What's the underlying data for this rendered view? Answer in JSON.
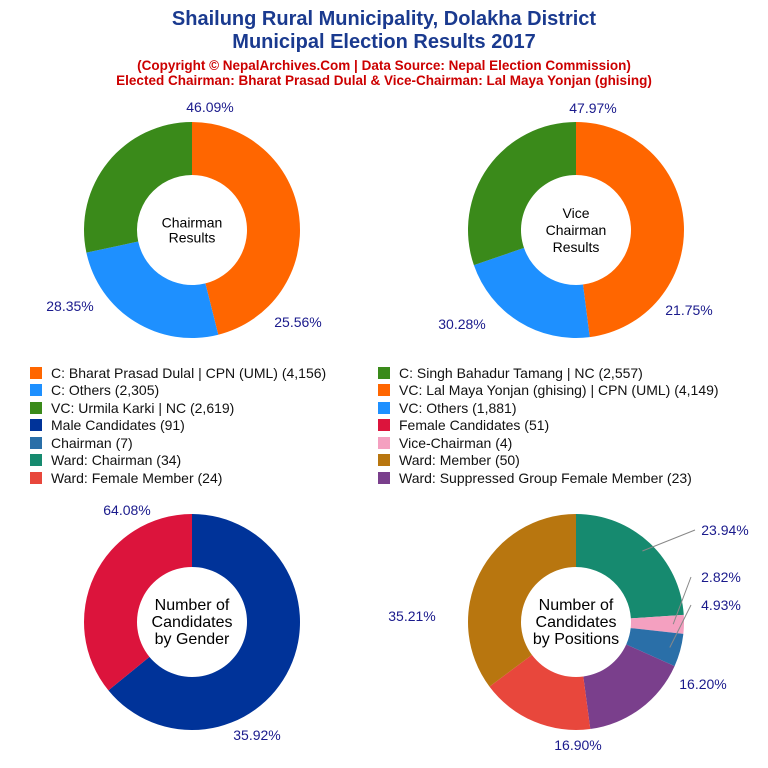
{
  "header": {
    "title_line1": "Shailung Rural Municipality, Dolakha District",
    "title_line2": "Municipal Election Results 2017",
    "subtitle_line1": "(Copyright © NepalArchives.Com | Data Source: Nepal Election Commission)",
    "subtitle_line2": "Elected Chairman: Bharat Prasad Dulal & Vice-Chairman: Lal Maya Yonjan (ghising)"
  },
  "colors": {
    "title": "#1a3a8f",
    "subtitle": "#cc0000",
    "percent_label": "#1a1a8c"
  },
  "chart_data": [
    {
      "type": "pie",
      "center_label": [
        "Chairman",
        "Results"
      ],
      "slices": [
        {
          "label": "C: Bharat Prasad Dulal | CPN (UML) (4,156)",
          "value": 4156,
          "percent": "46.09%",
          "color": "#ff6600"
        },
        {
          "label": "C: Others (2,305)",
          "value": 2305,
          "percent": "25.56%",
          "color": "#1e90ff"
        },
        {
          "label": "C: Singh Bahadur Tamang | NC (2,557)",
          "value": 2557,
          "percent": "28.35%",
          "color": "#3a8a1a"
        }
      ]
    },
    {
      "type": "pie",
      "center_label": [
        "Vice",
        "Chairman",
        "Results"
      ],
      "slices": [
        {
          "label": "VC: Lal Maya Yonjan (ghising) | CPN (UML) (4,149)",
          "value": 4149,
          "percent": "47.97%",
          "color": "#ff6600"
        },
        {
          "label": "VC: Others (1,881)",
          "value": 1881,
          "percent": "21.75%",
          "color": "#1e90ff"
        },
        {
          "label": "VC: Urmila Karki | NC (2,619)",
          "value": 2619,
          "percent": "30.28%",
          "color": "#3a8a1a"
        }
      ]
    },
    {
      "type": "pie",
      "center_label": [
        "Number of",
        "Candidates",
        "by Gender"
      ],
      "slices": [
        {
          "label": "Male Candidates (91)",
          "value": 91,
          "percent": "64.08%",
          "color": "#003399"
        },
        {
          "label": "Female Candidates (51)",
          "value": 51,
          "percent": "35.92%",
          "color": "#dc143c"
        }
      ]
    },
    {
      "type": "pie",
      "center_label": [
        "Number of",
        "Candidates",
        "by Positions"
      ],
      "slices": [
        {
          "label": "Ward: Chairman (34)",
          "value": 34,
          "percent": "23.94%",
          "color": "#168a6f"
        },
        {
          "label": "Vice-Chairman (4)",
          "value": 4,
          "percent": "2.82%",
          "color": "#f4a0c0"
        },
        {
          "label": "Chairman (7)",
          "value": 7,
          "percent": "4.93%",
          "color": "#2a6fa8"
        },
        {
          "label": "Ward: Suppressed Group Female Member (23)",
          "value": 23,
          "percent": "16.20%",
          "color": "#7a3f8c"
        },
        {
          "label": "Ward: Female Member (24)",
          "value": 24,
          "percent": "16.90%",
          "color": "#e8473c"
        },
        {
          "label": "Ward: Member (50)",
          "value": 50,
          "percent": "35.21%",
          "color": "#b8760f"
        }
      ]
    }
  ],
  "legend": [
    {
      "label": "C: Bharat Prasad Dulal | CPN (UML) (4,156)",
      "color": "#ff6600"
    },
    {
      "label": "C: Singh Bahadur Tamang | NC (2,557)",
      "color": "#3a8a1a"
    },
    {
      "label": "C: Others (2,305)",
      "color": "#1e90ff"
    },
    {
      "label": "VC: Lal Maya Yonjan (ghising) | CPN (UML) (4,149)",
      "color": "#ff6600"
    },
    {
      "label": "VC: Urmila Karki | NC (2,619)",
      "color": "#3a8a1a"
    },
    {
      "label": "VC: Others (1,881)",
      "color": "#1e90ff"
    },
    {
      "label": "Male Candidates (91)",
      "color": "#003399"
    },
    {
      "label": "Female Candidates (51)",
      "color": "#dc143c"
    },
    {
      "label": "Chairman (7)",
      "color": "#2a6fa8"
    },
    {
      "label": "Vice-Chairman (4)",
      "color": "#f4a0c0"
    },
    {
      "label": "Ward: Chairman (34)",
      "color": "#168a6f"
    },
    {
      "label": "Ward: Member (50)",
      "color": "#b8760f"
    },
    {
      "label": "Ward: Female Member (24)",
      "color": "#e8473c"
    },
    {
      "label": "Ward: Suppressed Group Female Member (23)",
      "color": "#7a3f8c"
    }
  ]
}
